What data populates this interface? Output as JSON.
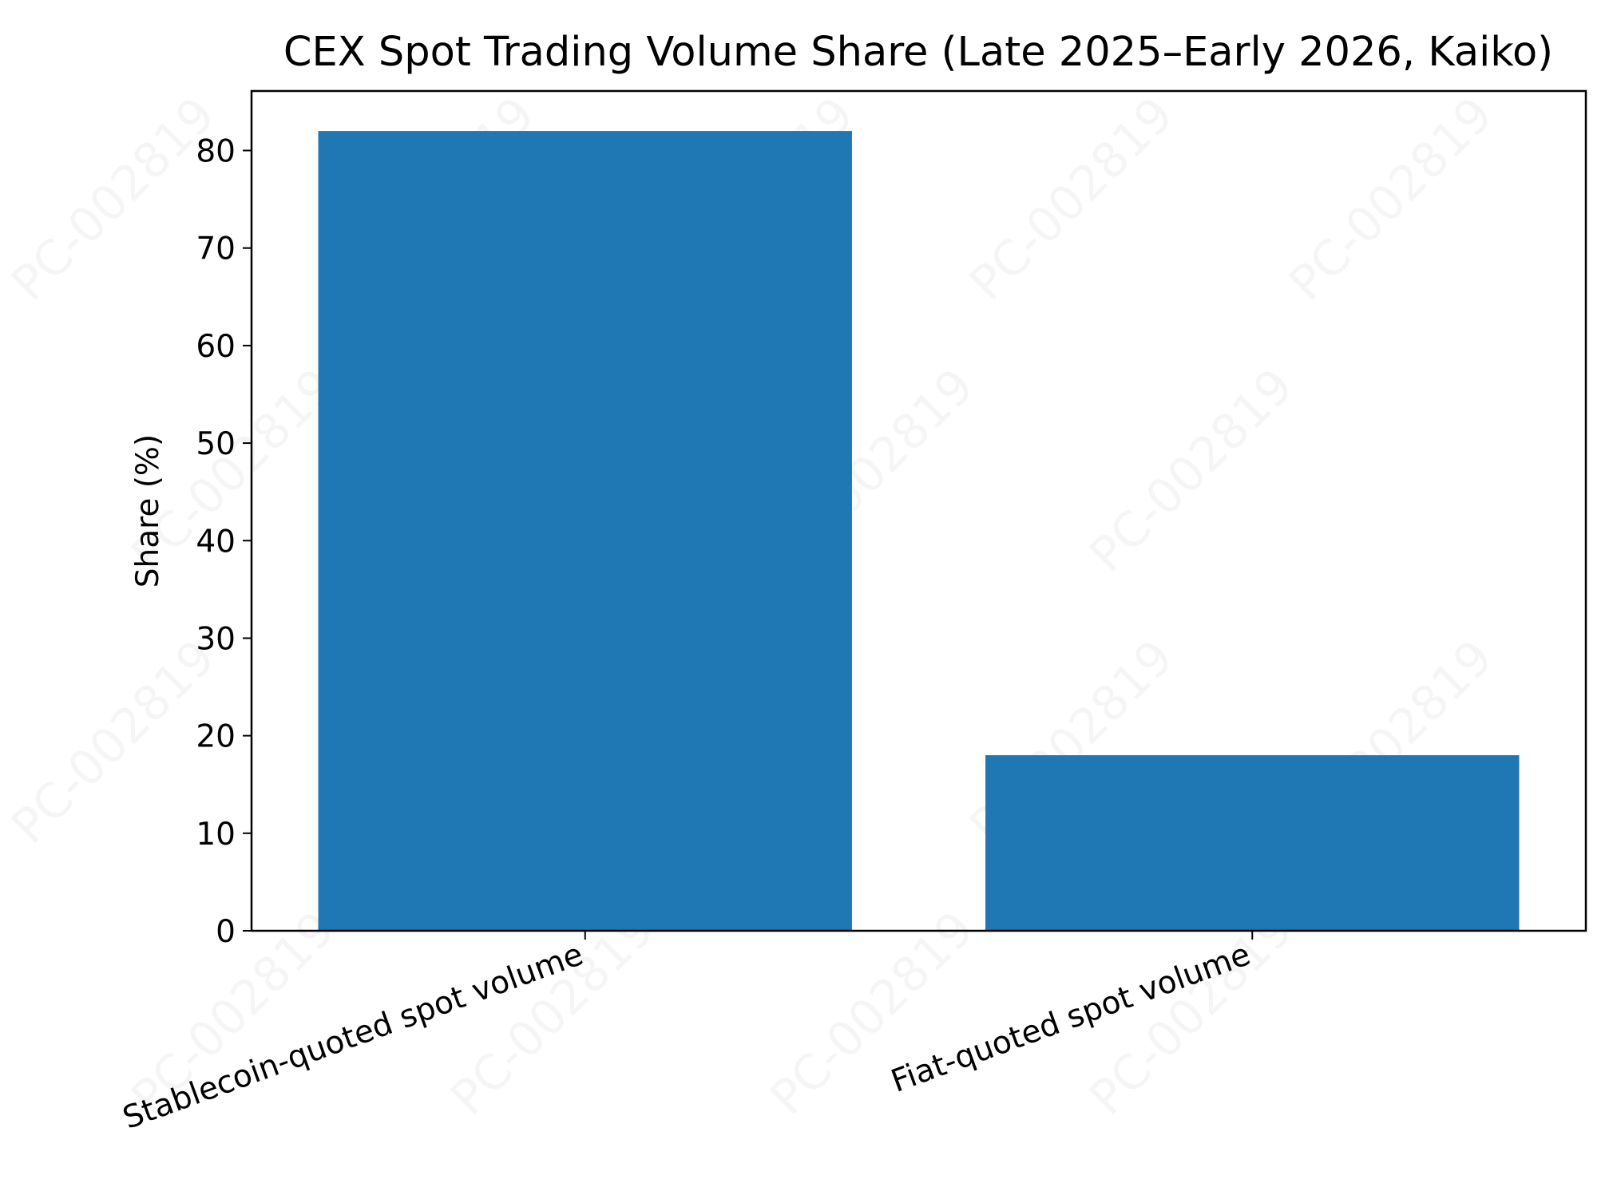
{
  "chart_data": {
    "type": "bar",
    "title": "CEX Spot Trading Volume Share (Late 2025–Early 2026, Kaiko)",
    "xlabel": "",
    "ylabel": "Share (%)",
    "categories": [
      "Stablecoin-quoted spot volume",
      "Fiat-quoted spot volume"
    ],
    "values": [
      82,
      18
    ],
    "ylim": [
      0,
      86.1
    ],
    "yticks": [
      0,
      10,
      20,
      30,
      40,
      50,
      60,
      70,
      80
    ],
    "grid": false,
    "legend": null,
    "bar_color": "#1f77b4"
  },
  "watermark": "PC-002819"
}
